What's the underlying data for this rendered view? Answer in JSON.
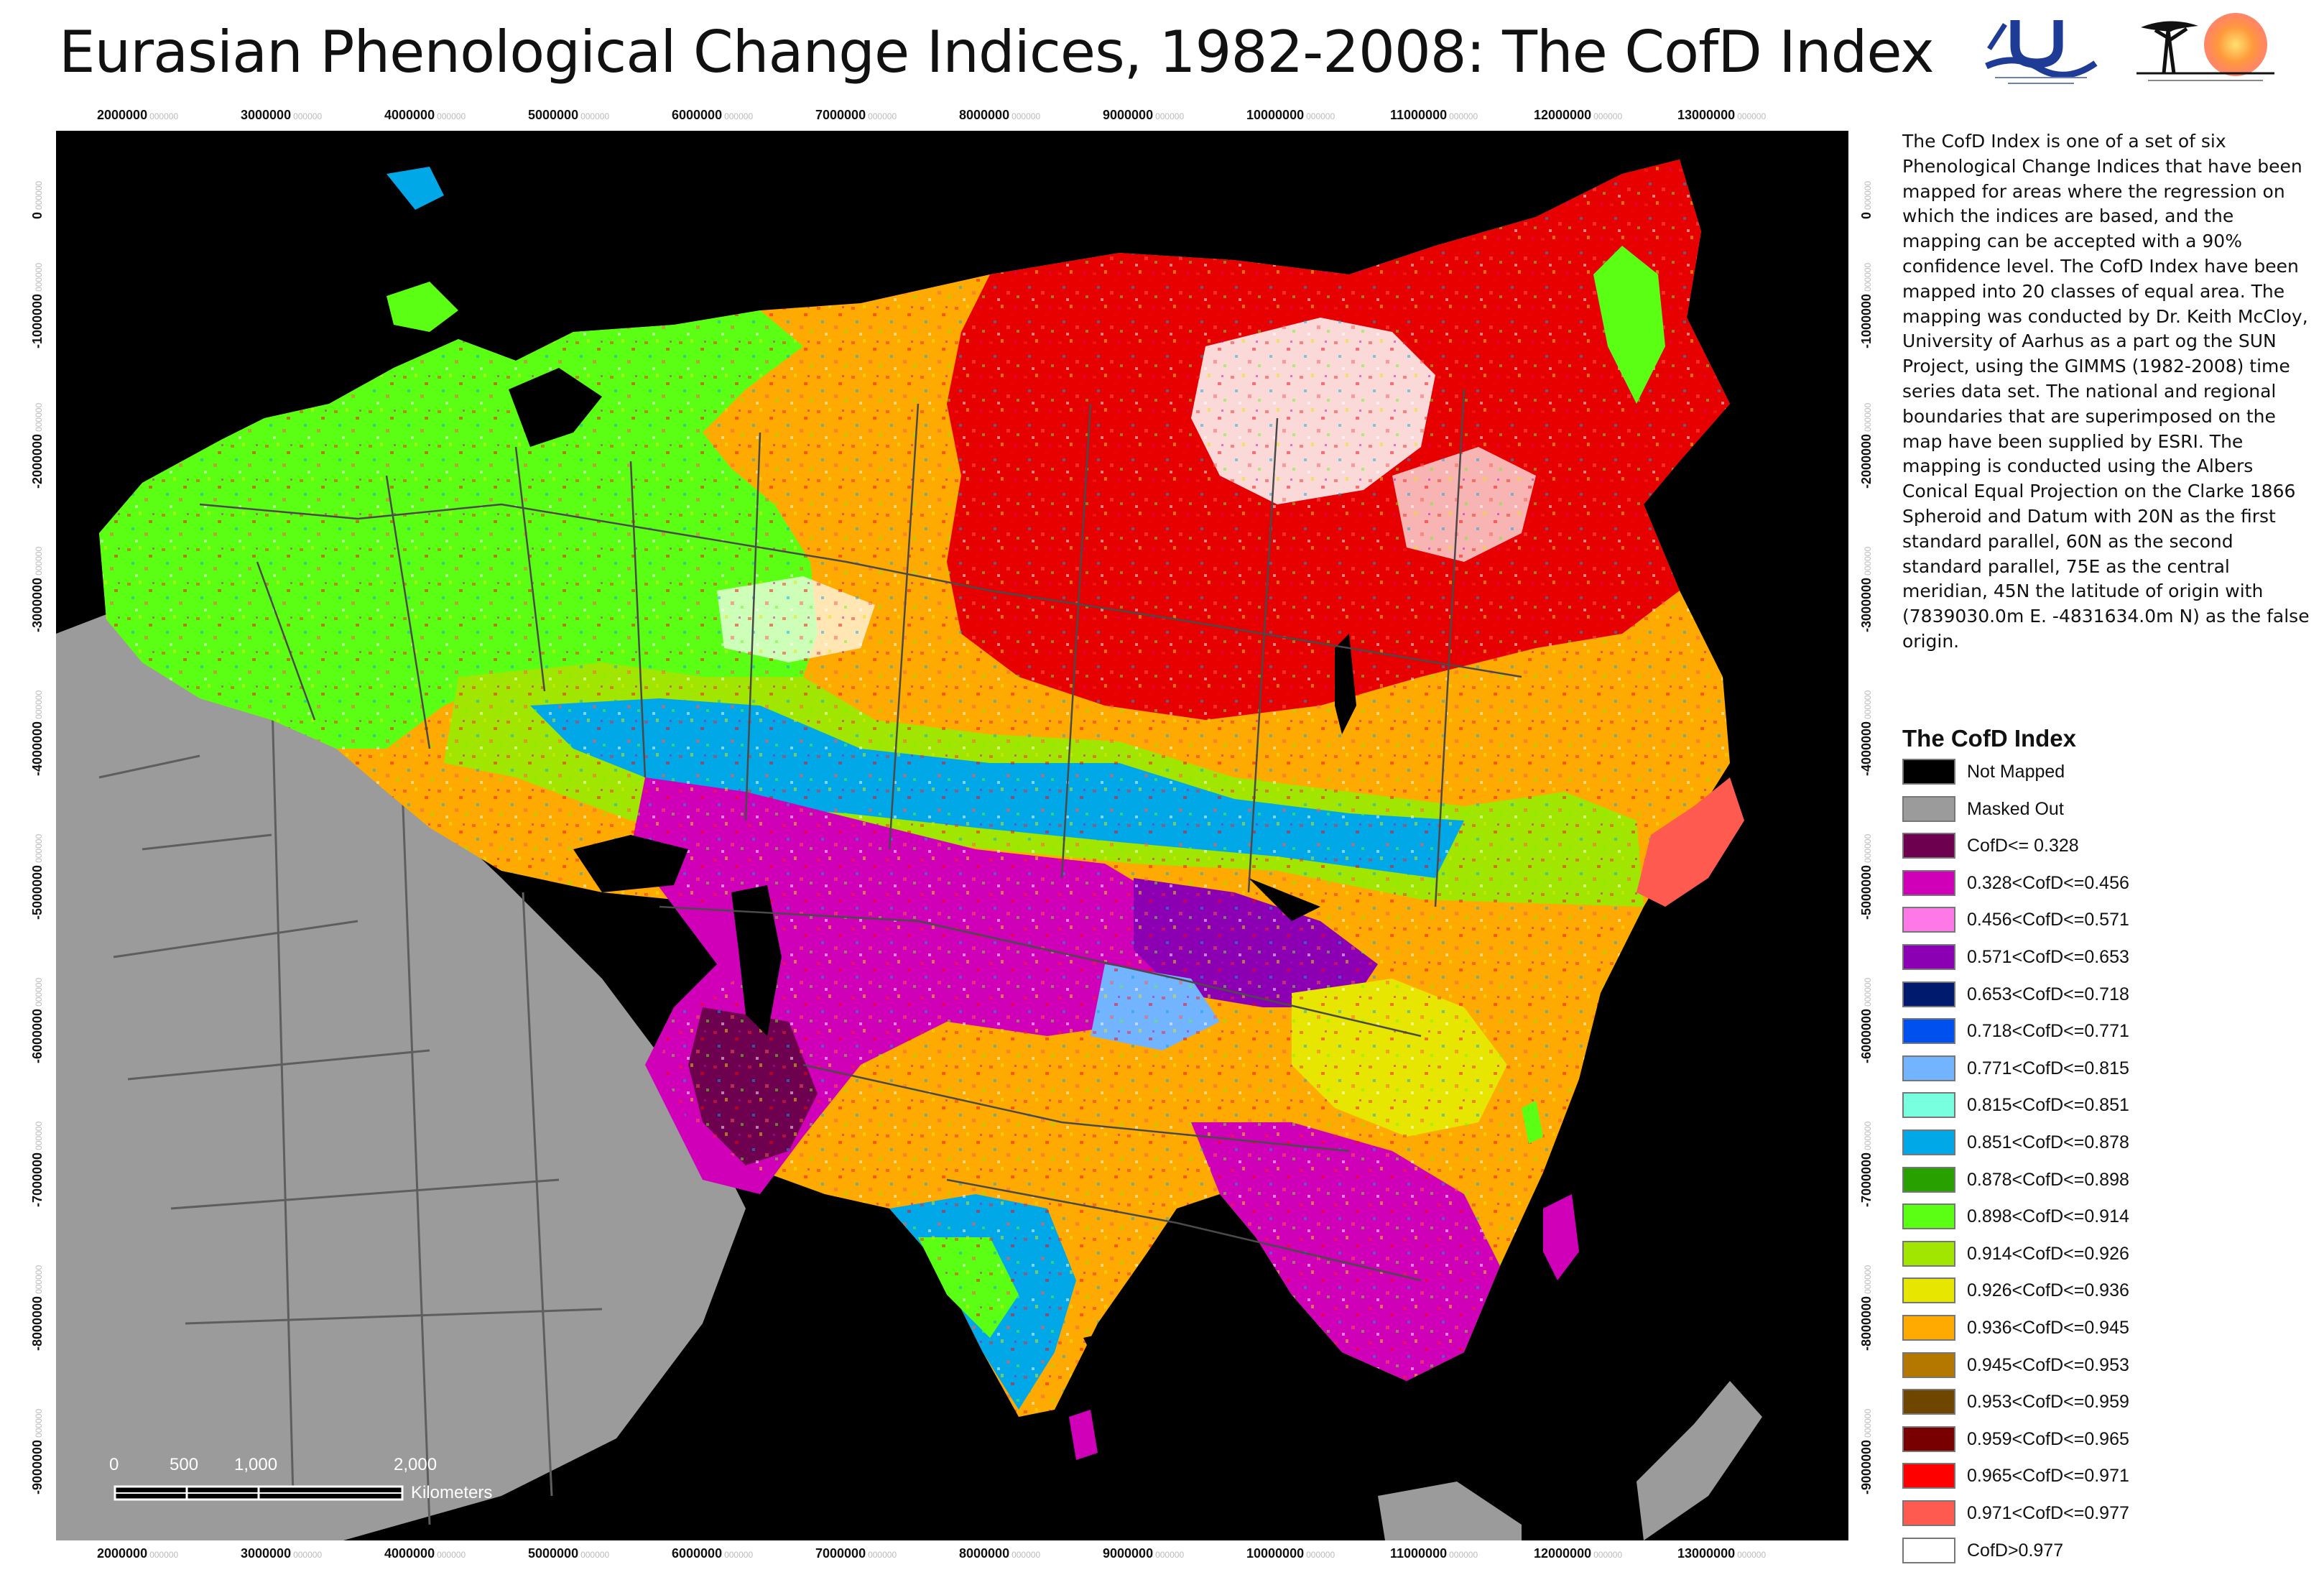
{
  "title": "Eurasian Phenological Change Indices, 1982-2008: The CofD Index",
  "logos": [
    {
      "name": "aarhus-university-logo",
      "icon": "blue-wave-emblem",
      "caption": "Faculty of Agricultural Sciences\nUniversity of Aarhus"
    },
    {
      "name": "sun-project-logo",
      "icon": "acacia-tree-sun-emblem",
      "caption": "Sustainable Use of Natural Vegetation in West Africa\nSUN"
    }
  ],
  "map": {
    "x_ticks": [
      "2000000",
      "3000000",
      "4000000",
      "5000000",
      "6000000",
      "7000000",
      "8000000",
      "9000000",
      "10000000",
      "11000000",
      "12000000",
      "13000000"
    ],
    "y_ticks": [
      "0",
      "-1000000",
      "-2000000",
      "-3000000",
      "-4000000",
      "-5000000",
      "-6000000",
      "-7000000",
      "-8000000",
      "-9000000"
    ],
    "tick_suffix": "000000",
    "scalebar": {
      "labels": [
        "0",
        "500",
        "1,000",
        "2,000"
      ],
      "unit": "Kilometers"
    },
    "colors": {
      "not_mapped": "#000000",
      "masked_out": "#9b9b9b",
      "boundary": "#4a4a4a"
    }
  },
  "description": "The CofD Index is one of a set of six Phenological Change Indices that have been mapped for areas where the regression on which the indices are based, and the mapping can be accepted with a 90% confidence level. The CofD Index have been mapped into 20 classes of equal area. The mapping was conducted by Dr. Keith McCloy, University of Aarhus as a part og the SUN Project, using the GIMMS (1982-2008) time series data set. The national and regional boundaries that are superimposed on the map have been supplied by ESRI. The mapping is conducted using the Albers Conical Equal Projection on the Clarke 1866 Spheroid and Datum with 20N as the first standard parallel, 60N as the second standard parallel, 75E as the central meridian, 45N the latitude of origin with (7839030.0m E. -4831634.0m N) as the false origin.",
  "legend": {
    "title": "The CofD Index",
    "items": [
      {
        "label": "Not Mapped",
        "color": "#000000"
      },
      {
        "label": "Masked Out",
        "color": "#9b9b9b"
      },
      {
        "label": "CofD<= 0.328",
        "color": "#6e0050"
      },
      {
        "label": "0.328<CofD<=0.456",
        "color": "#d000b8"
      },
      {
        "label": "0.456<CofD<=0.571",
        "color": "#ff78e8"
      },
      {
        "label": "0.571<CofD<=0.653",
        "color": "#8c00b4"
      },
      {
        "label": "0.653<CofD<=0.718",
        "color": "#001a6e"
      },
      {
        "label": "0.718<CofD<=0.771",
        "color": "#0050f0"
      },
      {
        "label": "0.771<CofD<=0.815",
        "color": "#72b4ff"
      },
      {
        "label": "0.815<CofD<=0.851",
        "color": "#78ffe0"
      },
      {
        "label": "0.851<CofD<=0.878",
        "color": "#00a8e8"
      },
      {
        "label": "0.878<CofD<=0.898",
        "color": "#28a000"
      },
      {
        "label": "0.898<CofD<=0.914",
        "color": "#5aff14"
      },
      {
        "label": "0.914<CofD<=0.926",
        "color": "#a0e600"
      },
      {
        "label": "0.926<CofD<=0.936",
        "color": "#e6e600"
      },
      {
        "label": "0.936<CofD<=0.945",
        "color": "#ffaa00"
      },
      {
        "label": "0.945<CofD<=0.953",
        "color": "#b47800"
      },
      {
        "label": "0.953<CofD<=0.959",
        "color": "#6e4600"
      },
      {
        "label": "0.959<CofD<=0.965",
        "color": "#780000"
      },
      {
        "label": "0.965<CofD<=0.971",
        "color": "#ff0000"
      },
      {
        "label": "0.971<CofD<=0.977",
        "color": "#ff5a50"
      },
      {
        "label": "CofD>0.977",
        "color": "#ffffff"
      }
    ]
  }
}
